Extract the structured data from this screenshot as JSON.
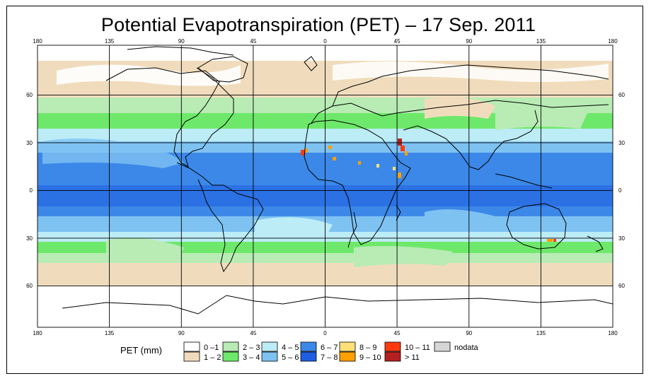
{
  "title": "Potential Evapotranspiration (PET) – 17 Sep. 2011",
  "axes": {
    "lon_ticks": [
      "180",
      "135",
      "90",
      "45",
      "0",
      "45",
      "90",
      "135",
      "180"
    ],
    "lat_ticks": [
      "60",
      "30",
      "0",
      "30",
      "60"
    ]
  },
  "legend": {
    "title": "PET (mm)",
    "items": [
      {
        "label": "0 –1",
        "color": "#ffffff"
      },
      {
        "label": "1 – 2",
        "color": "#f0dcbc"
      },
      {
        "label": "2 – 3",
        "color": "#b8ecb4"
      },
      {
        "label": "3 – 4",
        "color": "#6ee86a"
      },
      {
        "label": "4 – 5",
        "color": "#bcecf6"
      },
      {
        "label": "5 – 6",
        "color": "#7ec2f2"
      },
      {
        "label": "6 – 7",
        "color": "#3c88e8"
      },
      {
        "label": "7 – 8",
        "color": "#1e5ee0"
      },
      {
        "label": "8 – 9",
        "color": "#ffe07a"
      },
      {
        "label": "9 – 10",
        "color": "#ffa000"
      },
      {
        "label": "10 – 11",
        "color": "#ff3a10"
      },
      {
        "label": "> 11",
        "color": "#b42020"
      },
      {
        "label": "nodata",
        "color": "#d6d6d6"
      }
    ]
  }
}
